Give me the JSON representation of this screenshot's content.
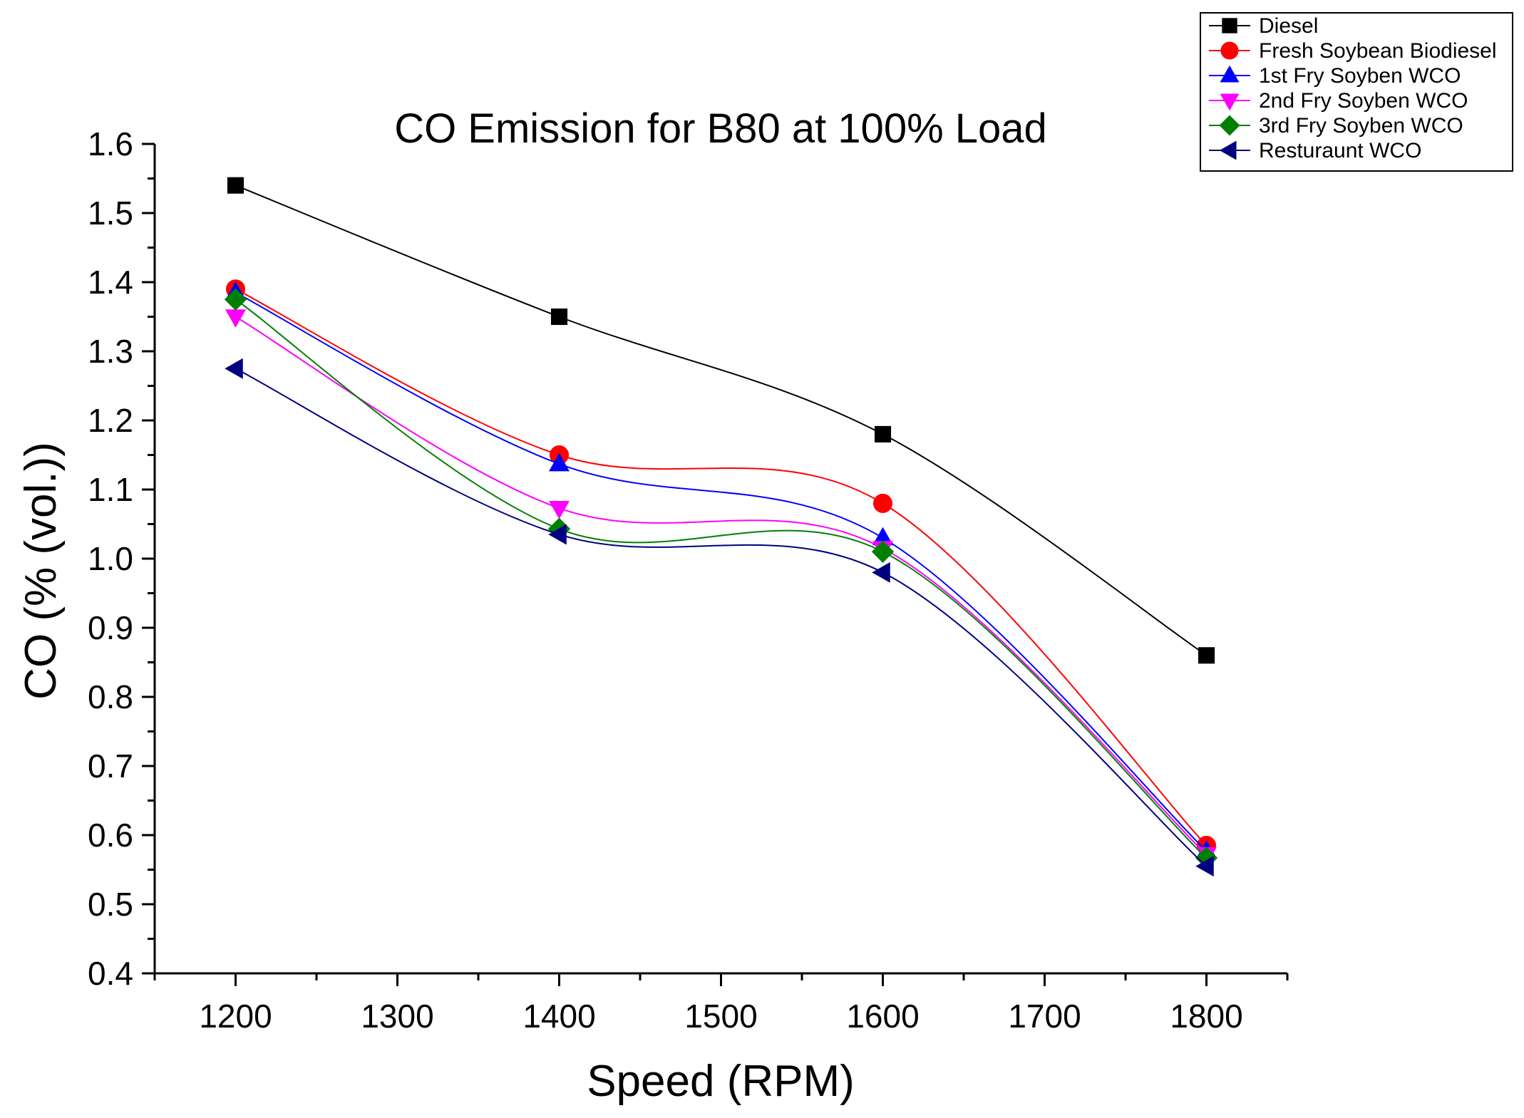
{
  "chart_data": {
    "type": "line",
    "title": "CO Emission for B80 at 100% Load",
    "xlabel": "Speed (RPM)",
    "ylabel": "CO (% (vol.))",
    "x": [
      1200,
      1400,
      1600,
      1800
    ],
    "xlim": [
      1150,
      1850
    ],
    "ylim": [
      0.4,
      1.6
    ],
    "xticks": [
      1200,
      1300,
      1400,
      1500,
      1600,
      1700,
      1800
    ],
    "xtick_labels": [
      "1200",
      "1300",
      "1400",
      "1500",
      "1600",
      "1700",
      "1800"
    ],
    "yticks": [
      0.4,
      0.5,
      0.6,
      0.7,
      0.8,
      0.9,
      1.0,
      1.1,
      1.2,
      1.3,
      1.4,
      1.5,
      1.6
    ],
    "ytick_labels": [
      "0.4",
      "0.5",
      "0.6",
      "0.7",
      "0.8",
      "0.9",
      "1.0",
      "1.1",
      "1.2",
      "1.3",
      "1.4",
      "1.5",
      "1.6"
    ],
    "grid": false,
    "legend_position": "top-right",
    "series": [
      {
        "name": "Diesel",
        "marker": "square",
        "color": "#000000",
        "values": [
          1.54,
          1.35,
          1.18,
          0.86
        ]
      },
      {
        "name": "Fresh Soybean Biodiesel",
        "marker": "circle",
        "color": "#ff0000",
        "values": [
          1.39,
          1.15,
          1.08,
          0.585
        ]
      },
      {
        "name": "1st Fry Soyben WCO",
        "marker": "triangle-up",
        "color": "#0000ff",
        "values": [
          1.385,
          1.137,
          1.03,
          0.577
        ]
      },
      {
        "name": "2nd Fry Soyben WCO",
        "marker": "triangle-down",
        "color": "#ff00ff",
        "values": [
          1.35,
          1.073,
          1.015,
          0.572
        ]
      },
      {
        "name": "3rd Fry Soyben WCO",
        "marker": "diamond",
        "color": "#008000",
        "values": [
          1.375,
          1.043,
          1.01,
          0.567
        ]
      },
      {
        "name": "Resturaunt WCO",
        "marker": "triangle-left",
        "color": "#000080",
        "values": [
          1.275,
          1.035,
          0.98,
          0.555
        ]
      }
    ]
  }
}
